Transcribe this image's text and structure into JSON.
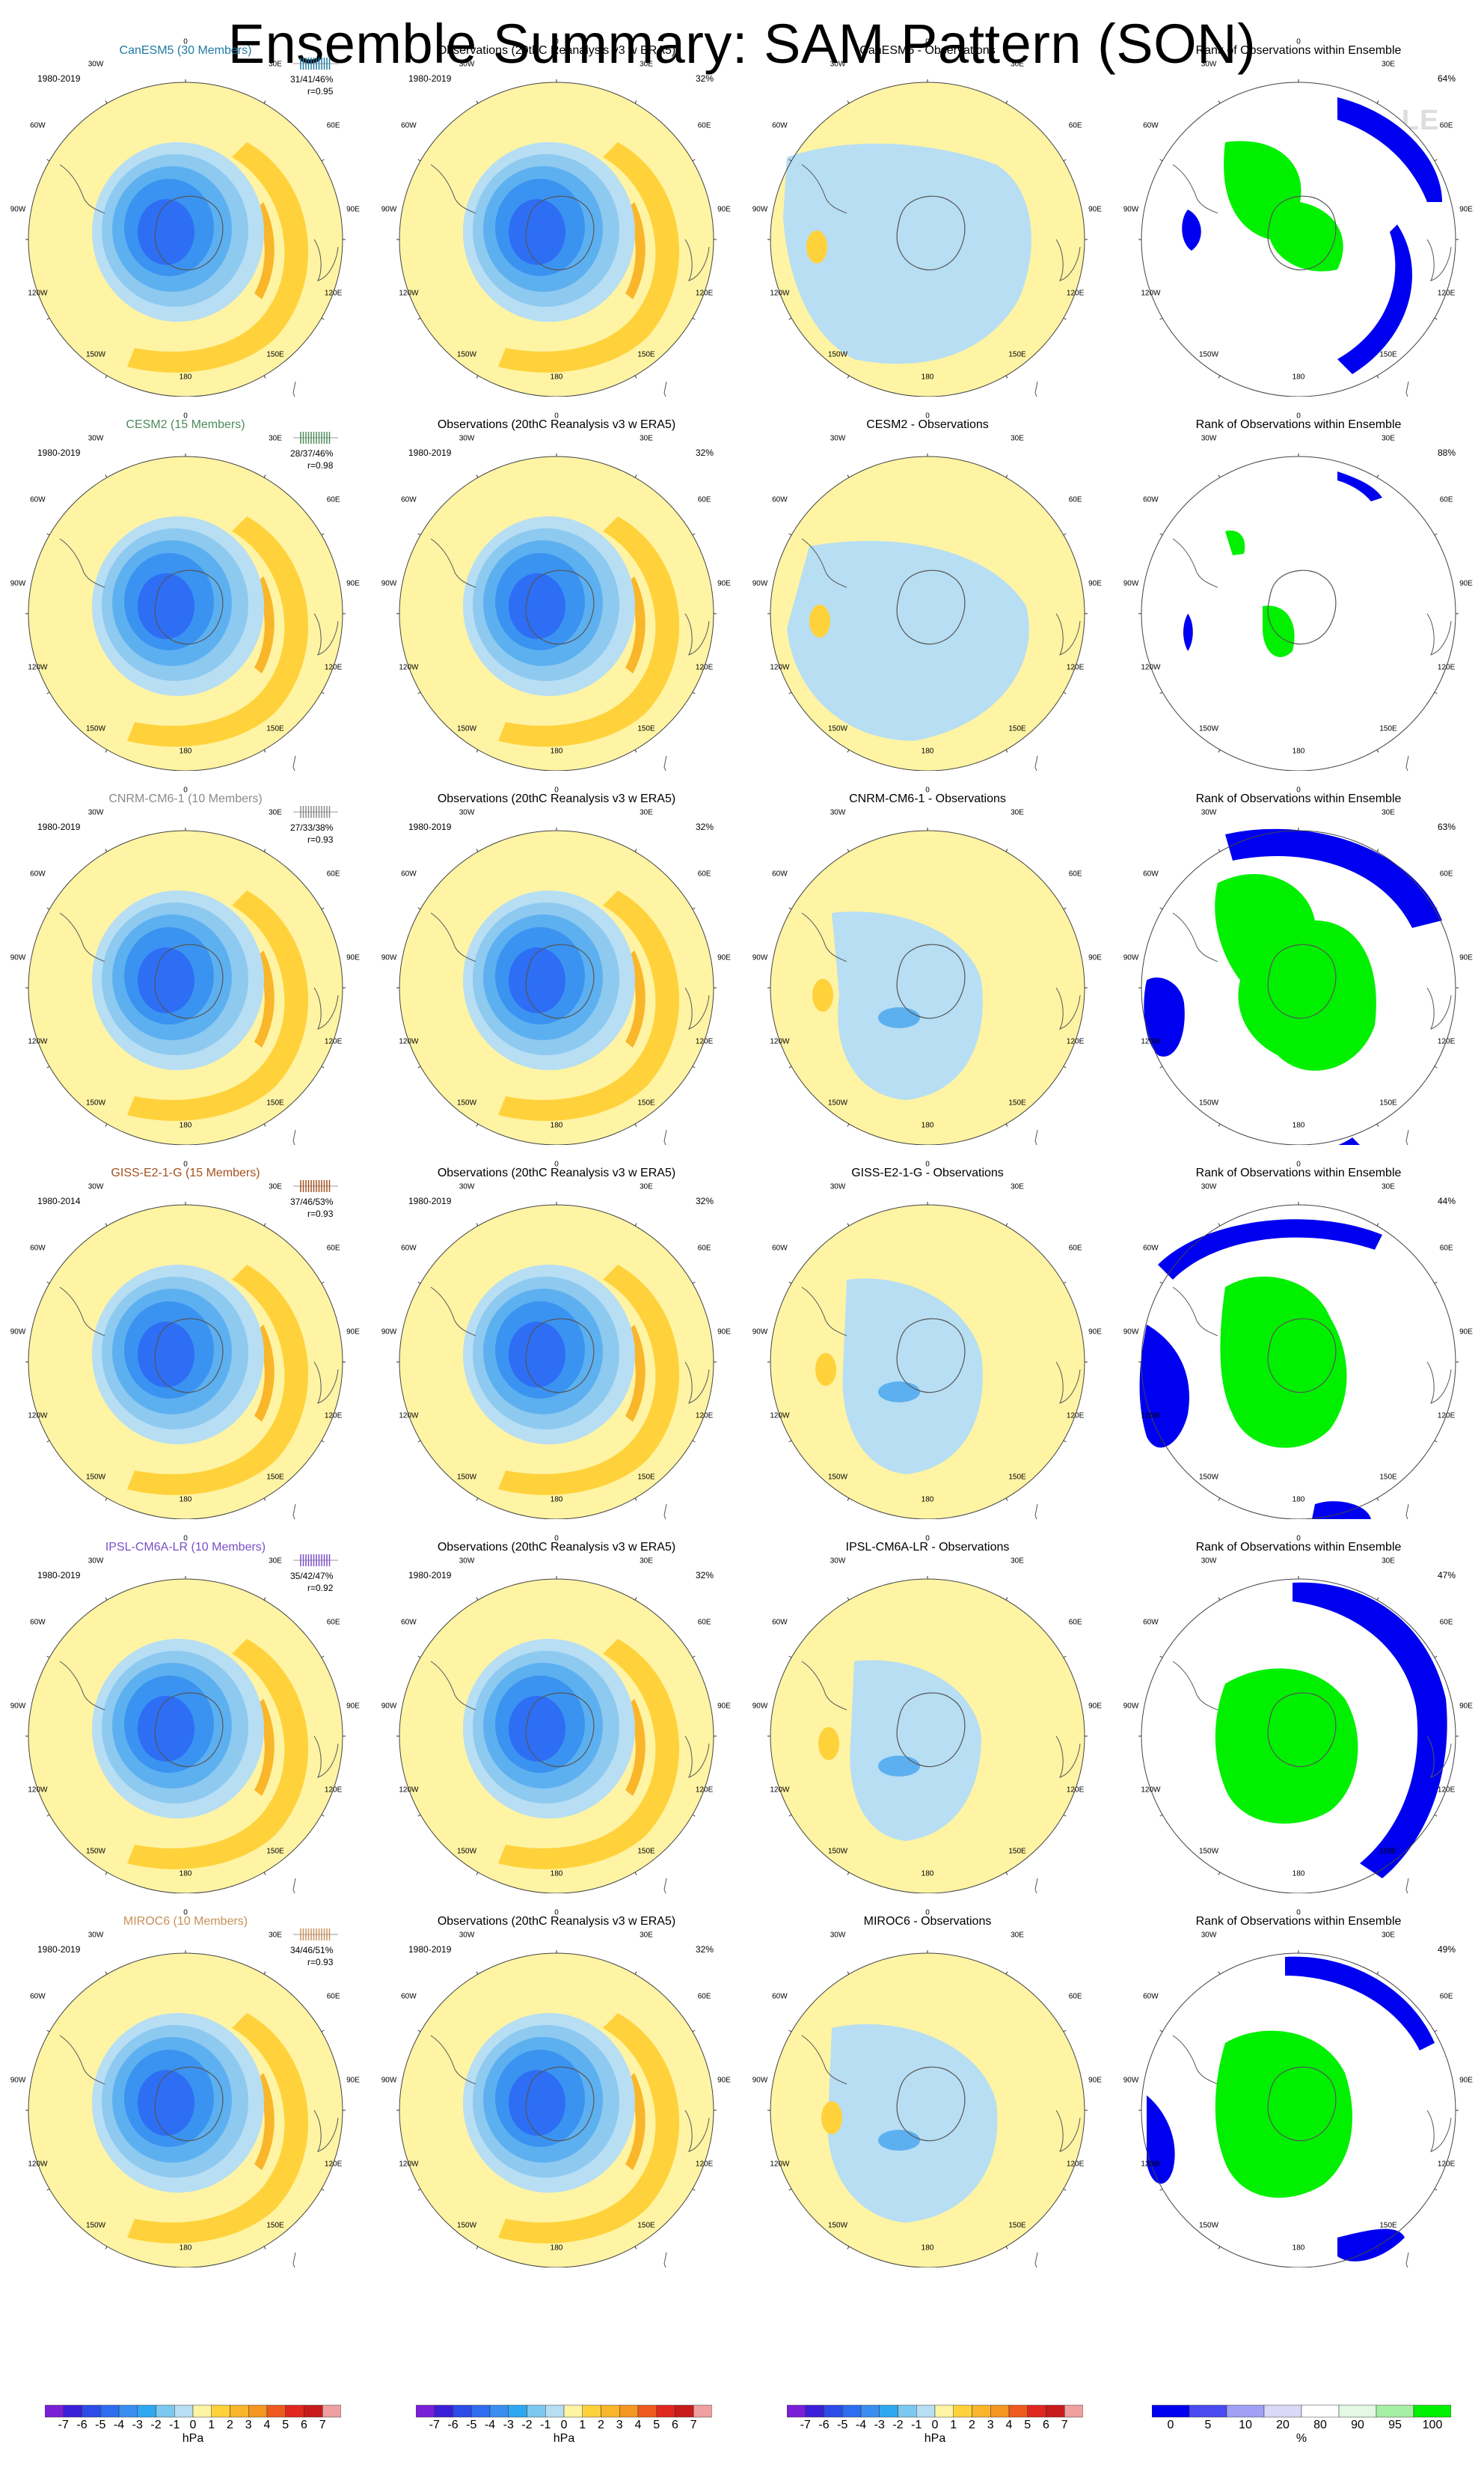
{
  "title": "Ensemble Summary: SAM Pattern (SON)",
  "watermark": "© CVDP-LE",
  "lon_labels": [
    "0",
    "30E",
    "60E",
    "90E",
    "120E",
    "150E",
    "180",
    "150W",
    "120W",
    "90W",
    "60W",
    "30W"
  ],
  "colors": {
    "pos1": "#fff4a4",
    "pos2": "#ffd23c",
    "pos3": "#f9b62a",
    "pos4": "#f39722",
    "neg1": "#b7def3",
    "neg2": "#8ec9f0",
    "neg3": "#5db0f0",
    "neg4": "#3a93f0",
    "neg5": "#2d6ef5",
    "rank_low": "#0000f0",
    "rank_mid": "#dadaf8",
    "rank_high": "#00f000",
    "rank_pale": "#ccf6cc"
  },
  "rows": [
    {
      "model": {
        "name": "CanESM5 (30 Members)",
        "color": "#1f7aa5",
        "period": "1980-2019",
        "stats": "31/41/46%",
        "r": "r=0.95"
      },
      "obs": {
        "name": "Observations (20thC Reanalysis v3 w ERA5)",
        "period": "1980-2019",
        "pct": "32%"
      },
      "diff": {
        "name": "CanESM5 - Observations"
      },
      "rank": {
        "name": "Rank of Observations within Ensemble",
        "pct": "64%"
      }
    },
    {
      "model": {
        "name": "CESM2 (15 Members)",
        "color": "#4e8a5a",
        "period": "1980-2019",
        "stats": "28/37/46%",
        "r": "r=0.98"
      },
      "obs": {
        "name": "Observations (20thC Reanalysis v3 w ERA5)",
        "period": "1980-2019",
        "pct": "32%"
      },
      "diff": {
        "name": "CESM2 - Observations"
      },
      "rank": {
        "name": "Rank of Observations within Ensemble",
        "pct": "88%"
      }
    },
    {
      "model": {
        "name": "CNRM-CM6-1 (10 Members)",
        "color": "#8a8a8a",
        "period": "1980-2019",
        "stats": "27/33/38%",
        "r": "r=0.93"
      },
      "obs": {
        "name": "Observations (20thC Reanalysis v3 w ERA5)",
        "period": "1980-2019",
        "pct": "32%"
      },
      "diff": {
        "name": "CNRM-CM6-1 - Observations"
      },
      "rank": {
        "name": "Rank of Observations within Ensemble",
        "pct": "63%"
      }
    },
    {
      "model": {
        "name": "GISS-E2-1-G (15 Members)",
        "color": "#a5511f",
        "period": "1980-2014",
        "stats": "37/46/53%",
        "r": "r=0.93"
      },
      "obs": {
        "name": "Observations (20thC Reanalysis v3 w ERA5)",
        "period": "1980-2019",
        "pct": "32%"
      },
      "diff": {
        "name": "GISS-E2-1-G - Observations"
      },
      "rank": {
        "name": "Rank of Observations within Ensemble",
        "pct": "44%"
      }
    },
    {
      "model": {
        "name": "IPSL-CM6A-LR (10 Members)",
        "color": "#7a4fc7",
        "period": "1980-2019",
        "stats": "35/42/47%",
        "r": "r=0.92"
      },
      "obs": {
        "name": "Observations (20thC Reanalysis v3 w ERA5)",
        "period": "1980-2019",
        "pct": "32%"
      },
      "diff": {
        "name": "IPSL-CM6A-LR - Observations"
      },
      "rank": {
        "name": "Rank of Observations within Ensemble",
        "pct": "47%"
      }
    },
    {
      "model": {
        "name": "MIROC6 (10 Members)",
        "color": "#c8905a",
        "period": "1980-2019",
        "stats": "34/46/51%",
        "r": "r=0.93"
      },
      "obs": {
        "name": "Observations (20thC Reanalysis v3 w ERA5)",
        "period": "1980-2019",
        "pct": "32%"
      },
      "diff": {
        "name": "MIROC6 - Observations"
      },
      "rank": {
        "name": "Rank of Observations within Ensemble",
        "pct": "49%"
      }
    }
  ],
  "colorbars": {
    "hpa": {
      "labels": [
        "-7",
        "-6",
        "-5",
        "-4",
        "-3",
        "-2",
        "-1",
        "0",
        "1",
        "2",
        "3",
        "4",
        "5",
        "6",
        "7"
      ],
      "unit": "hPa",
      "colors": [
        "#7a1fd8",
        "#3b1fd8",
        "#2d4be6",
        "#2e6cf0",
        "#3a8ef0",
        "#2ea8f0",
        "#7cc8f0",
        "#b7def3",
        "#fff4a4",
        "#ffd23c",
        "#f9b62a",
        "#f39722",
        "#ef5a1e",
        "#e0281e",
        "#c81a1a",
        "#f0a0a0"
      ]
    },
    "pct": {
      "labels": [
        "0",
        "5",
        "10",
        "20",
        "80",
        "90",
        "95",
        "100"
      ],
      "unit": "%",
      "colors": [
        "#0000f0",
        "#4a4af0",
        "#a0a0f4",
        "#dadaf8",
        "#ffffff",
        "#e4f8e4",
        "#a6f0a6",
        "#00f000"
      ]
    }
  }
}
